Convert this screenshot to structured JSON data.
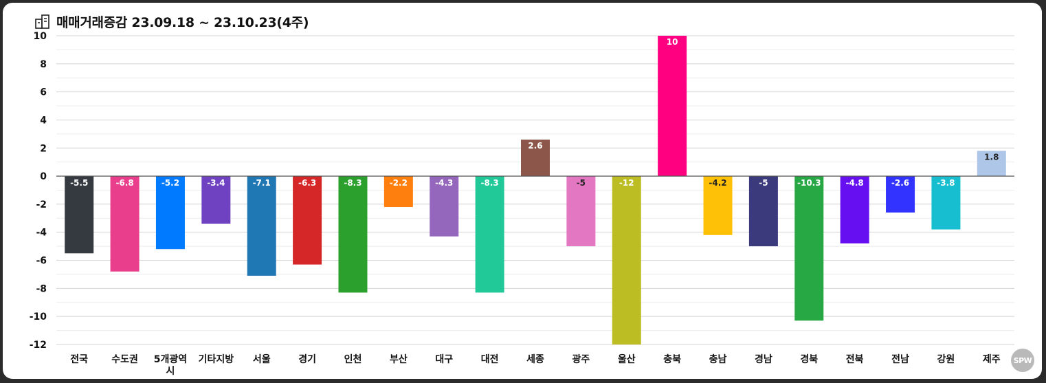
{
  "header": {
    "title": "매매거래증감 23.09.18 ~ 23.10.23(4주)",
    "icon": "building-icon"
  },
  "watermark": "SPW",
  "chart_data": {
    "type": "bar",
    "title": "매매거래증감 23.09.18 ~ 23.10.23(4주)",
    "xlabel": "",
    "ylabel": "",
    "ylim": [
      -12,
      10
    ],
    "yticks": [
      10,
      8,
      6,
      4,
      2,
      0,
      -2,
      -4,
      -6,
      -8,
      -10,
      -12
    ],
    "grid": true,
    "legend": "none",
    "categories": [
      "전국",
      "수도권",
      "5개광역시",
      "기타지방",
      "서울",
      "경기",
      "인천",
      "부산",
      "대구",
      "대전",
      "세종",
      "광주",
      "울산",
      "충북",
      "충남",
      "경남",
      "경북",
      "전북",
      "전남",
      "강원",
      "제주"
    ],
    "values": [
      -5.5,
      -6.8,
      -5.2,
      -3.4,
      -7.1,
      -6.3,
      -8.3,
      -2.2,
      -4.3,
      -8.3,
      2.6,
      -5,
      -12,
      10,
      -4.2,
      -5,
      -10.3,
      -4.8,
      -2.6,
      -3.8,
      1.8
    ],
    "data_labels": [
      "-5.5",
      "-6.8",
      "-5.2",
      "-3.4",
      "-7.1",
      "-6.3",
      "-8.3",
      "-2.2",
      "-4.3",
      "-8.3",
      "2.6",
      "-5",
      "-12",
      "10",
      "-4.2",
      "-5",
      "-10.3",
      "-4.8",
      "-2.6",
      "-3.8",
      "1.8"
    ],
    "colors": [
      "#343a40",
      "#e83e8c",
      "#007bff",
      "#6f42c1",
      "#1f77b4",
      "#d62728",
      "#2ca02c",
      "#ff7f0e",
      "#9467bd",
      "#20c997",
      "#8c564b",
      "#e377c2",
      "#bcbd22",
      "#ff0080",
      "#ffc107",
      "#3a3a7c",
      "#28a745",
      "#6610f2",
      "#3333ff",
      "#17becf",
      "#aec7e8"
    ],
    "label_colors": [
      "#ffffff",
      "#ffffff",
      "#ffffff",
      "#ffffff",
      "#ffffff",
      "#ffffff",
      "#ffffff",
      "#ffffff",
      "#ffffff",
      "#ffffff",
      "#ffffff",
      "#222222",
      "#ffffff",
      "#ffffff",
      "#222222",
      "#ffffff",
      "#ffffff",
      "#ffffff",
      "#ffffff",
      "#ffffff",
      "#222222"
    ]
  }
}
